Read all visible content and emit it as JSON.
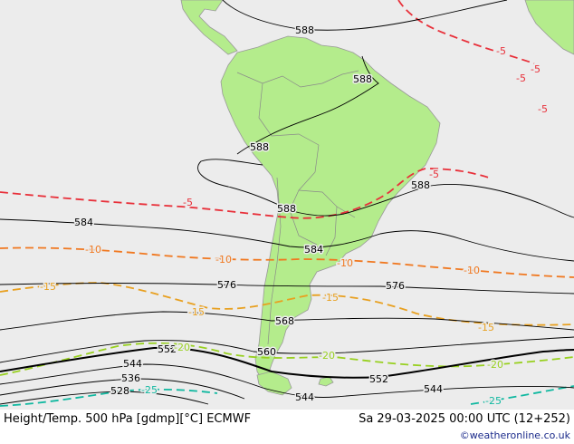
{
  "footer": {
    "title": "Height/Temp. 500 hPa [gdmp][°C] ECMWF",
    "valid_time": "Sa 29-03-2025 00:00 UTC (12+252)",
    "credit": "©weatheronline.co.uk"
  },
  "colors": {
    "background": "#ececec",
    "land": "#b4ec8c",
    "land_border": "#999999",
    "height_contour": "#000000",
    "temp_minus5": "#e8303a",
    "temp_minus10": "#f07820",
    "temp_minus15": "#e8a020",
    "temp_minus20": "#98d020",
    "temp_minus25": "#10b8a0"
  },
  "height_labels": {
    "h588_a": "588",
    "h588_b": "588",
    "h588_c": "588",
    "h588_d": "588",
    "h588_e": "588",
    "h584_a": "584",
    "h584_b": "584",
    "h576_a": "576",
    "h576_b": "576",
    "h568": "568",
    "h560": "560",
    "h552_a": "552",
    "h552_b": "552",
    "h544_a": "544",
    "h544_b": "544",
    "h544_c": "544",
    "h536": "536",
    "h528": "528"
  },
  "temp_labels": {
    "t5_a": "-5",
    "t5_b": "-5",
    "t5_c": "-5",
    "t5_d": "-5",
    "t5_e": "-5",
    "t5_f": "-5",
    "t10_a": "-10",
    "t10_b": "-10",
    "t10_c": "-10",
    "t10_d": "-10",
    "t15_a": "-15",
    "t15_b": "-15",
    "t15_c": "-15",
    "t15_d": "-15",
    "t20_a": "-20",
    "t20_b": "-20",
    "t20_c": "-20",
    "t25_a": "-25",
    "t25_b": "-25"
  }
}
